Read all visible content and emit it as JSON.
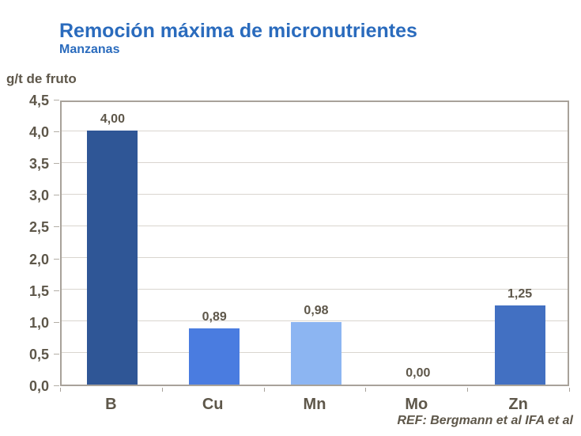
{
  "chart": {
    "title": "Remoción máxima de micronutrientes",
    "subtitle": "Manzanas",
    "y_axis_title": "g/t de fruto",
    "reference": "REF: Bergmann et al IFA et al"
  },
  "chart_data": {
    "type": "bar",
    "title": "Remoción máxima de micronutrientes",
    "subtitle": "Manzanas",
    "xlabel": "",
    "ylabel": "g/t de fruto",
    "categories": [
      "B",
      "Cu",
      "Mn",
      "Mo",
      "Zn"
    ],
    "values": [
      4.0,
      0.89,
      0.98,
      0.0,
      1.25
    ],
    "value_labels": [
      "4,00",
      "0,89",
      "0,98",
      "0,00",
      "1,25"
    ],
    "bar_colors": [
      "#2f5696",
      "#4a7ce0",
      "#8cb5f2",
      "#4a7ce0",
      "#4270c2"
    ],
    "ylim": [
      0,
      4.5
    ],
    "ytick_step": 0.5,
    "ytick_labels": [
      "0,0",
      "0,5",
      "1,0",
      "1,5",
      "2,0",
      "2,5",
      "3,0",
      "3,5",
      "4,0",
      "4,5"
    ],
    "grid": true,
    "legend": false,
    "annotation": "REF: Bergmann et al IFA et al"
  },
  "colors": {
    "title_blue": "#2a6bbd",
    "text_brown": "#5e574a",
    "gridline": "#d9d5cf",
    "axis_border": "#a8a29a",
    "background": "#ffffff"
  }
}
